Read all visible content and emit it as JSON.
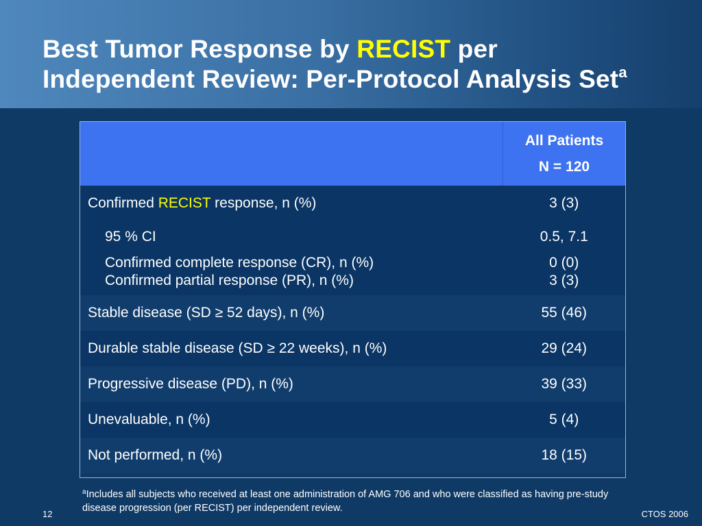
{
  "title": {
    "line1_part1": "Best Tumor Response by ",
    "line1_highlight": "RECIST",
    "line1_part2": " per",
    "line2": "Independent Review: Per-Protocol Analysis Set",
    "superscript": "a"
  },
  "table": {
    "header": {
      "label": "",
      "value_line1": "All Patients",
      "value_line2": "N = 120"
    },
    "row_confirmed": {
      "label_prefix": "Confirmed ",
      "label_highlight": "RECIST",
      "label_suffix": " response, n (%)",
      "value": "3 (3)"
    },
    "sub_rows": [
      {
        "label": "95 % CI",
        "value": "0.5, 7.1"
      },
      {
        "label": "Confirmed complete response (CR), n (%)",
        "value": "0 (0)"
      },
      {
        "label": "Confirmed partial response (PR), n (%)",
        "value": "3 (3)"
      }
    ],
    "rows": [
      {
        "label": "Stable disease (SD ≥ 52 days), n (%)",
        "value": "55 (46)"
      },
      {
        "label": "Durable stable disease (SD ≥ 22 weeks), n (%)",
        "value": "29 (24)"
      },
      {
        "label": "Progressive disease (PD), n (%)",
        "value": "39 (33)"
      },
      {
        "label": "Unevaluable, n (%)",
        "value": "5 (4)"
      },
      {
        "label": "Not performed, n (%)",
        "value": "18 (15)"
      }
    ]
  },
  "footnote": {
    "marker": "a",
    "text": "Includes all subjects who received at least one administration of AMG 706 and who were classified as having pre-study disease progression (per RECIST) per independent review."
  },
  "page_number": "12",
  "brand": "CTOS 2006",
  "colors": {
    "background": "#0f3a66",
    "header_band": "#4f88bd",
    "table_header": "#3d73f0",
    "highlight": "#ffff00"
  }
}
